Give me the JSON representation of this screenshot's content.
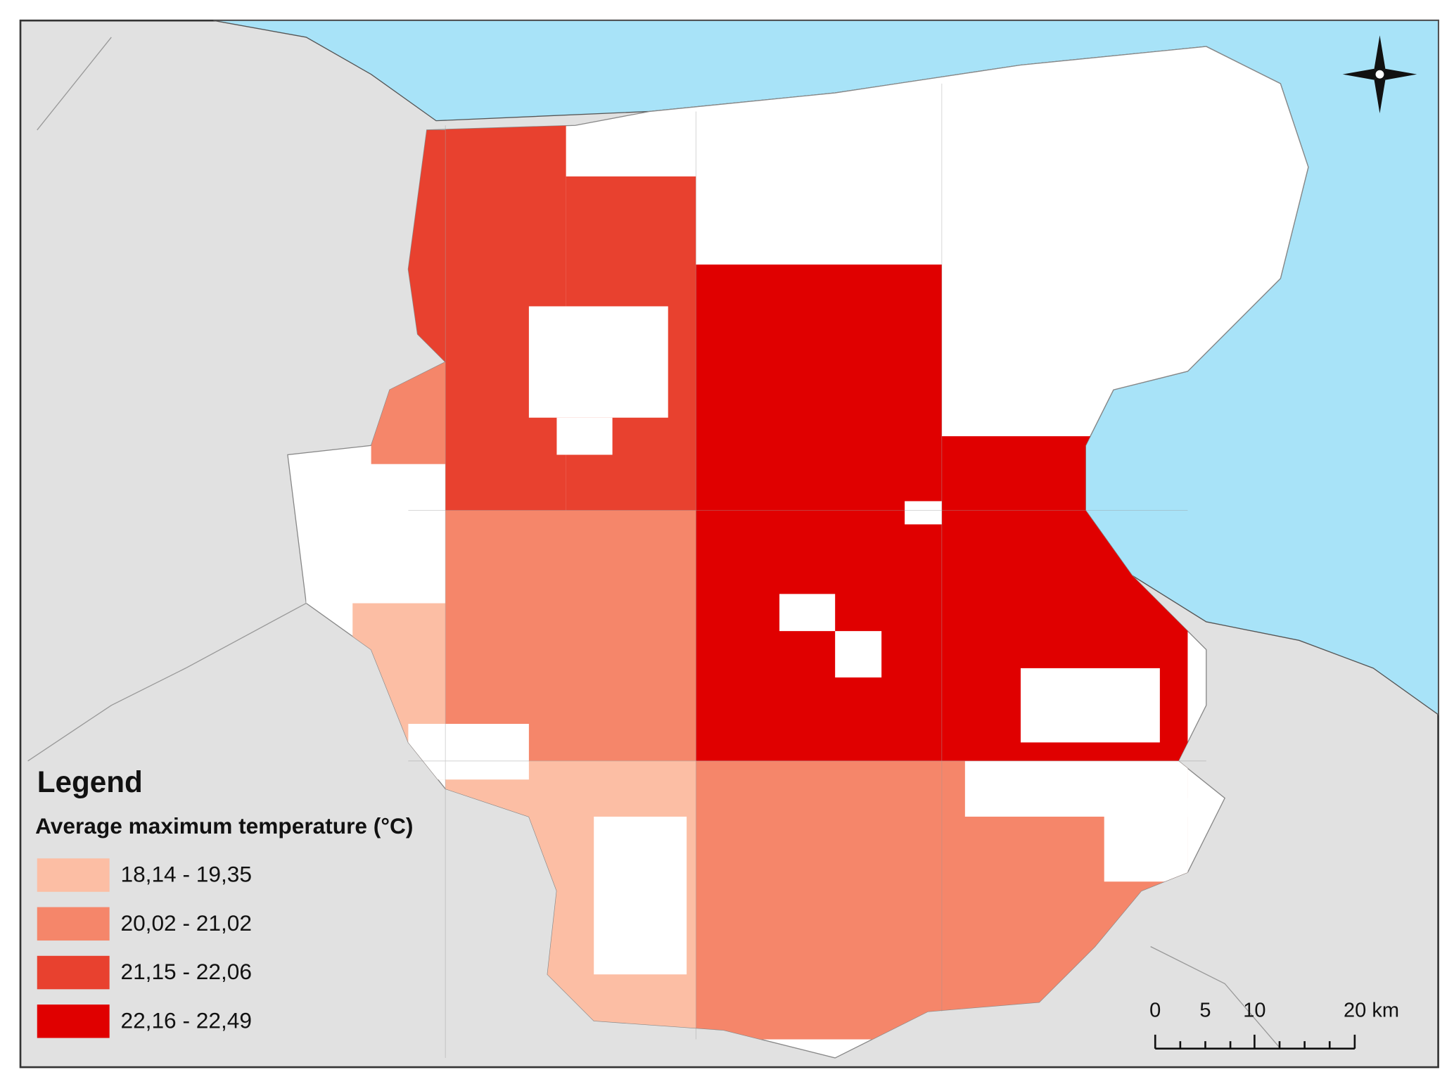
{
  "legend": {
    "title": "Legend",
    "subtitle": "Average maximum temperature (°C)",
    "classes": [
      {
        "label": "18,14 - 19,35",
        "color": "#fcbea4"
      },
      {
        "label": "20,02 - 21,02",
        "color": "#f5866a"
      },
      {
        "label": "21,15 - 22,06",
        "color": "#e8412f"
      },
      {
        "label": "22,16 - 22,49",
        "color": "#e00000"
      }
    ]
  },
  "scale_bar": {
    "labels": [
      "0",
      "5",
      "10",
      "20 km"
    ]
  }
}
